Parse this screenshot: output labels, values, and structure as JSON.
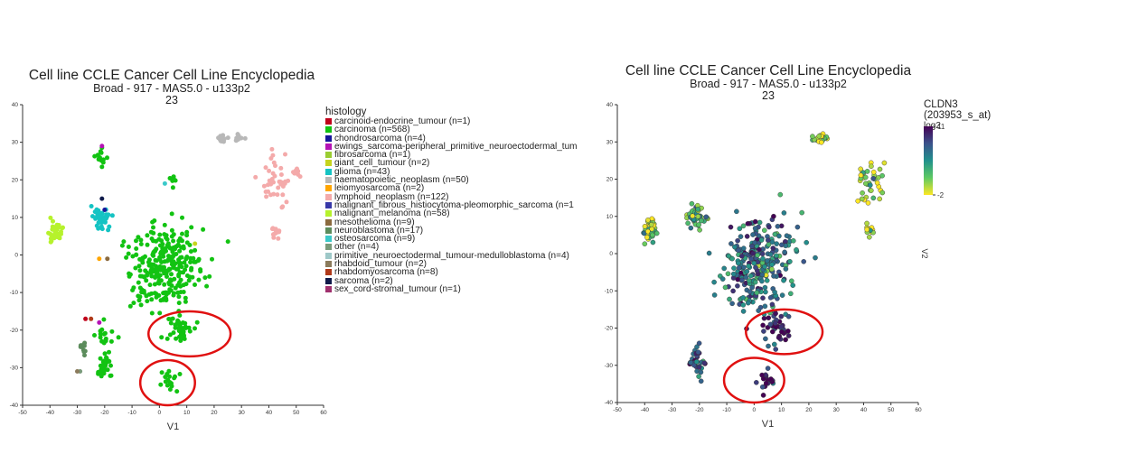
{
  "left": {
    "title": "Cell line CCLE Cancer Cell Line Encyclopedia",
    "subtitle": "Broad - 917 - MAS5.0 - u133p2",
    "subtitle2": "23",
    "xlabel": "V1",
    "legend_title": "histology",
    "legend": [
      {
        "label": "carcinoid-endocrine_tumour (n=1)",
        "color": "#c0001a"
      },
      {
        "label": "carcinoma (n=568)",
        "color": "#12c312"
      },
      {
        "label": "chondrosarcoma (n=4)",
        "color": "#16169a"
      },
      {
        "label": "ewings_sarcoma-peripheral_primitive_neuroectodermal_tum",
        "color": "#b512b5"
      },
      {
        "label": "fibrosarcoma (n=1)",
        "color": "#9acd32"
      },
      {
        "label": "giant_cell_tumour (n=2)",
        "color": "#c6d41e"
      },
      {
        "label": "glioma (n=43)",
        "color": "#15c3c3"
      },
      {
        "label": "haematopoietic_neoplasm (n=50)",
        "color": "#b8b8b8"
      },
      {
        "label": "leiomyosarcoma (n=2)",
        "color": "#ffa500"
      },
      {
        "label": "lymphoid_neoplasm (n=122)",
        "color": "#f4aaaa"
      },
      {
        "label": "malignant_fibrous_histiocytoma-pleomorphic_sarcoma (n=1",
        "color": "#3838a8"
      },
      {
        "label": "malignant_melanoma (n=58)",
        "color": "#b6f22c"
      },
      {
        "label": "mesothelioma (n=9)",
        "color": "#8b6a3e"
      },
      {
        "label": "neuroblastoma (n=17)",
        "color": "#5c8c5c"
      },
      {
        "label": "osteosarcoma (n=9)",
        "color": "#3bc9c9"
      },
      {
        "label": "other (n=4)",
        "color": "#7a9a7a"
      },
      {
        "label": "primitive_neuroectodermal_tumour-medulloblastoma (n=4)",
        "color": "#9ec8c8"
      },
      {
        "label": "rhabdoid_tumour (n=2)",
        "color": "#8b7b5c"
      },
      {
        "label": "rhabdomyosarcoma (n=8)",
        "color": "#b03a1a"
      },
      {
        "label": "sarcoma (n=2)",
        "color": "#0f1a4a"
      },
      {
        "label": "sex_cord-stromal_tumour (n=1)",
        "color": "#a0306e"
      }
    ]
  },
  "right": {
    "title": "Cell line CCLE Cancer Cell Line Encyclopedia",
    "subtitle": "Broad - 917 - MAS5.0 - u133p2",
    "subtitle2": "23",
    "xlabel": "V1",
    "ylabel": "V2",
    "colorbar_title": "CLDN3 (203953_s_at)",
    "colorbar_subtitle": "log2",
    "colorbar_max": "11",
    "colorbar_min": "-2",
    "colorscale": [
      "#fde725",
      "#5ec962",
      "#21918c",
      "#3b528b",
      "#440154"
    ]
  },
  "chart_data": [
    {
      "type": "scatter",
      "title": "Cell line CCLE Cancer Cell Line Encyclopedia",
      "xlabel": "V1",
      "ylabel": "",
      "xlim": [
        -50,
        60
      ],
      "ylim": [
        -40,
        40
      ],
      "x_ticks": [
        -50,
        -40,
        -30,
        -20,
        -10,
        0,
        10,
        20,
        30,
        40,
        50,
        60
      ],
      "y_ticks": [
        -40,
        -30,
        -20,
        -10,
        0,
        10,
        20,
        30,
        40
      ],
      "color_by": "histology",
      "clusters": [
        {
          "group": "carcinoma",
          "center": [
            2,
            -3
          ],
          "spread": [
            12,
            11
          ],
          "n": 280
        },
        {
          "group": "carcinoma",
          "center": [
            8,
            -20
          ],
          "spread": [
            5,
            4
          ],
          "n": 40
        },
        {
          "group": "carcinoma",
          "center": [
            4,
            -34
          ],
          "spread": [
            3,
            3
          ],
          "n": 18
        },
        {
          "group": "carcinoma",
          "center": [
            -20,
            -29
          ],
          "spread": [
            3,
            4
          ],
          "n": 30
        },
        {
          "group": "carcinoma",
          "center": [
            -20,
            -22
          ],
          "spread": [
            3,
            3
          ],
          "n": 16
        },
        {
          "group": "carcinoma",
          "center": [
            -21,
            26
          ],
          "spread": [
            2,
            3
          ],
          "n": 14
        },
        {
          "group": "carcinoma",
          "center": [
            5,
            20
          ],
          "spread": [
            2,
            1.5
          ],
          "n": 10
        },
        {
          "group": "glioma",
          "center": [
            -21,
            10
          ],
          "spread": [
            3,
            3
          ],
          "n": 40
        },
        {
          "group": "malignant_melanoma",
          "center": [
            -38,
            6
          ],
          "spread": [
            2.5,
            3
          ],
          "n": 40
        },
        {
          "group": "haematopoietic_neoplasm",
          "center": [
            23,
            31
          ],
          "spread": [
            2,
            1
          ],
          "n": 14
        },
        {
          "group": "haematopoietic_neoplasm",
          "center": [
            29,
            31
          ],
          "spread": [
            2,
            1
          ],
          "n": 14
        },
        {
          "group": "lymphoid_neoplasm",
          "center": [
            42,
            20
          ],
          "spread": [
            5,
            6
          ],
          "n": 40
        },
        {
          "group": "lymphoid_neoplasm",
          "center": [
            42,
            6
          ],
          "spread": [
            2,
            1.5
          ],
          "n": 12
        },
        {
          "group": "lymphoid_neoplasm",
          "center": [
            50,
            22
          ],
          "spread": [
            2,
            1
          ],
          "n": 8
        },
        {
          "group": "neuroblastoma",
          "center": [
            -28,
            -25
          ],
          "spread": [
            1,
            2
          ],
          "n": 12
        }
      ],
      "highlighted_regions": [
        {
          "center": [
            11,
            -21
          ],
          "radius": [
            15,
            6
          ]
        },
        {
          "center": [
            3,
            -34
          ],
          "radius": [
            10,
            6
          ]
        }
      ]
    },
    {
      "type": "scatter",
      "title": "Cell line CCLE Cancer Cell Line Encyclopedia",
      "xlabel": "V1",
      "ylabel": "V2",
      "xlim": [
        -50,
        60
      ],
      "ylim": [
        -40,
        40
      ],
      "x_ticks": [
        -50,
        -40,
        -30,
        -20,
        -10,
        0,
        10,
        20,
        30,
        40,
        50,
        60
      ],
      "y_ticks": [
        -40,
        -30,
        -20,
        -10,
        0,
        10,
        20,
        30,
        40
      ],
      "color_by": "CLDN3 (203953_s_at) log2",
      "color_range": [
        -2,
        11
      ],
      "clusters": [
        {
          "center": [
            2,
            -3
          ],
          "spread": [
            12,
            11
          ],
          "n": 280,
          "mean_value": 6
        },
        {
          "center": [
            8,
            -20
          ],
          "spread": [
            5,
            4
          ],
          "n": 40,
          "mean_value": 10
        },
        {
          "center": [
            4,
            -34
          ],
          "spread": [
            3,
            3
          ],
          "n": 18,
          "mean_value": 10.5
        },
        {
          "center": [
            -21,
            -29
          ],
          "spread": [
            3,
            4
          ],
          "n": 30,
          "mean_value": 7
        },
        {
          "center": [
            -38,
            6
          ],
          "spread": [
            2.5,
            3
          ],
          "n": 40,
          "mean_value": 1
        },
        {
          "center": [
            -21,
            10
          ],
          "spread": [
            3,
            3
          ],
          "n": 40,
          "mean_value": 2
        },
        {
          "center": [
            24,
            31
          ],
          "spread": [
            3,
            1
          ],
          "n": 26,
          "mean_value": 0
        },
        {
          "center": [
            42,
            20
          ],
          "spread": [
            5,
            6
          ],
          "n": 40,
          "mean_value": 0
        },
        {
          "center": [
            42,
            6
          ],
          "spread": [
            2,
            1.5
          ],
          "n": 12,
          "mean_value": 0
        }
      ],
      "highlighted_regions": [
        {
          "center": [
            11,
            -21
          ],
          "radius": [
            14,
            6
          ]
        },
        {
          "center": [
            0,
            -34
          ],
          "radius": [
            11,
            6
          ]
        }
      ]
    }
  ]
}
